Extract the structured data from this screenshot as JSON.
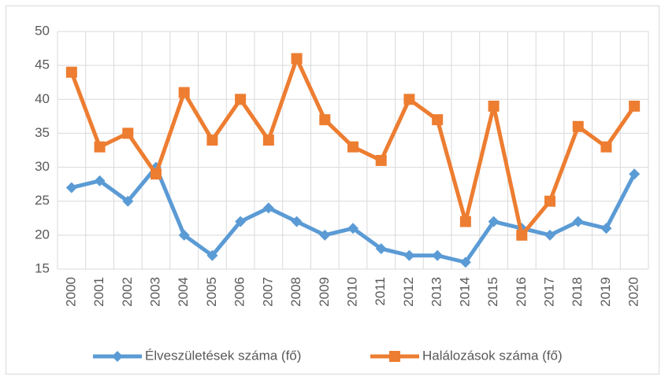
{
  "chart_data": {
    "type": "line",
    "categories": [
      "2000",
      "2001",
      "2002",
      "2003",
      "2004",
      "2005",
      "2006",
      "2007",
      "2008",
      "2009",
      "2010",
      "2011",
      "2012",
      "2013",
      "2014",
      "2015",
      "2016",
      "2017",
      "2018",
      "2019",
      "2020"
    ],
    "series": [
      {
        "name": "Élveszületések száma (fő)",
        "color": "#5b9bd5",
        "marker": "diamond",
        "values": [
          27,
          28,
          25,
          30,
          20,
          17,
          22,
          24,
          22,
          20,
          21,
          18,
          17,
          17,
          16,
          22,
          21,
          20,
          22,
          21,
          29
        ]
      },
      {
        "name": "Halálozások száma (fő)",
        "color": "#ed7d31",
        "marker": "square",
        "values": [
          44,
          33,
          35,
          29,
          41,
          34,
          40,
          34,
          46,
          37,
          33,
          31,
          40,
          37,
          22,
          39,
          20,
          25,
          36,
          33,
          39
        ]
      }
    ],
    "ylim": [
      15,
      50
    ],
    "yticks": [
      15,
      20,
      25,
      30,
      35,
      40,
      45,
      50
    ],
    "grid": true,
    "legend": "bottom"
  }
}
